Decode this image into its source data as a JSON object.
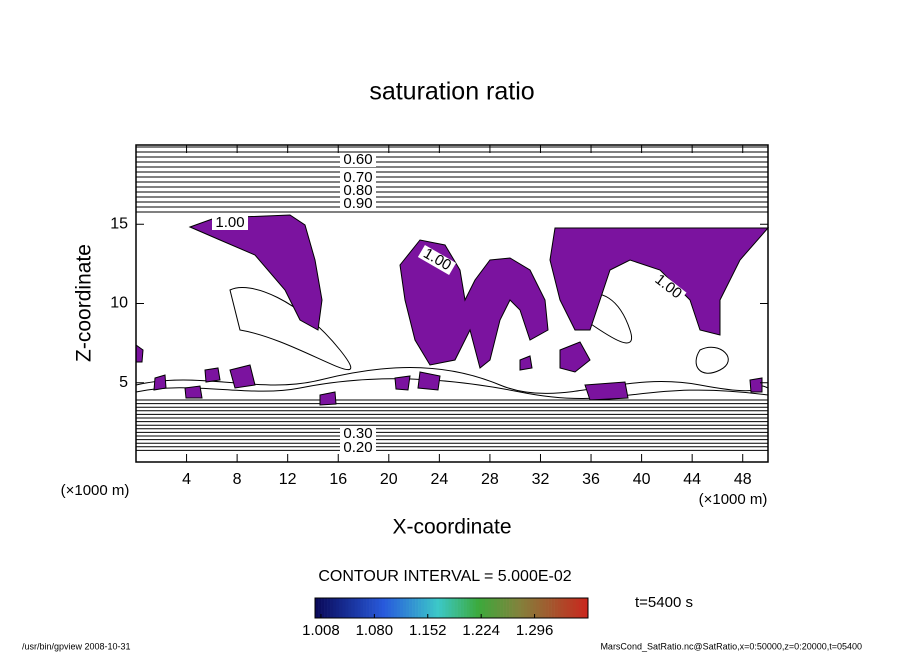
{
  "chart_data": {
    "type": "contour",
    "title": "saturation ratio",
    "xlabel": "X-coordinate",
    "ylabel": "Z-coordinate",
    "x_unit": "(×1000 m)",
    "y_unit": "(×1000 m)",
    "xlim": [
      0,
      50
    ],
    "ylim": [
      0,
      20
    ],
    "xticks": [
      4,
      8,
      12,
      16,
      20,
      24,
      28,
      32,
      36,
      40,
      44,
      48
    ],
    "yticks": [
      5,
      10,
      15
    ],
    "fill_color": "#7b139f",
    "contour_labels": [
      "0.60",
      "0.70",
      "0.80",
      "0.90",
      "1.00",
      "1.00",
      "1.00",
      "0.30",
      "0.20"
    ],
    "contour_interval": "CONTOUR INTERVAL = 5.000E-02",
    "time_label": "t=5400 s",
    "clim": [
      1.0,
      1.368
    ],
    "colorbar_ticks": [
      {
        "value": 1.008,
        "label": "1.008"
      },
      {
        "value": 1.08,
        "label": "1.080"
      },
      {
        "value": 1.152,
        "label": "1.152"
      },
      {
        "value": 1.224,
        "label": "1.224"
      },
      {
        "value": 1.296,
        "label": "1.296"
      }
    ],
    "footer_left": "/usr/bin/gpview   2008-10-31",
    "footer_right": "MarsCond_SatRatio.nc@SatRatio,x=0:50000,z=0:20000,t=05400"
  }
}
